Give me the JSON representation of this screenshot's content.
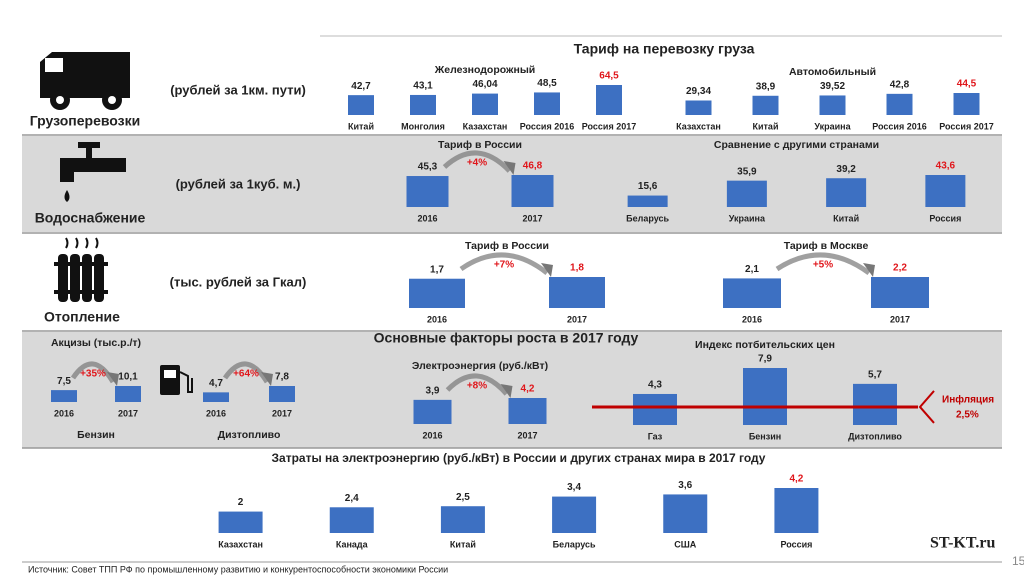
{
  "sections": {
    "freight": {
      "title": "Грузоперевозки",
      "unit": "(рублей за 1км. пути)",
      "header": "Тариф на перевозку груза"
    },
    "water": {
      "title": "Водоснабжение",
      "unit": "(рублей за 1куб. м.)"
    },
    "heating": {
      "title": "Отопление",
      "unit": "(тыс. рублей за Гкал)"
    },
    "factors": {
      "header": "Основные факторы роста в 2017 году"
    }
  },
  "source": "Источник: Совет ТПП РФ по промышленному развитию и конкурентоспособности экономики России",
  "logo": "ST-KT.ru",
  "page_number": "15",
  "chart_data": [
    {
      "type": "bar",
      "title": "Железнодорожный",
      "categories": [
        "Китай",
        "Монголия",
        "Казахстан",
        "Россия 2016",
        "Россия 2017"
      ],
      "values": [
        42.7,
        43.1,
        46.04,
        48.5,
        64.5
      ],
      "value_labels": [
        "42,7",
        "43,1",
        "46,04",
        "48,5",
        "64,5"
      ],
      "value_label_colors": [
        "#222222",
        "#222222",
        "#222222",
        "#222222",
        "#e0161b"
      ],
      "color": "#3d70c2"
    },
    {
      "type": "bar",
      "title": "Автомобильный",
      "categories": [
        "Казахстан",
        "Китай",
        "Украина",
        "Россия 2016",
        "Россия 2017"
      ],
      "values": [
        29.34,
        38.9,
        39.52,
        42.8,
        44.5
      ],
      "value_labels": [
        "29,34",
        "38,9",
        "39,52",
        "42,8",
        "44,5"
      ],
      "value_label_colors": [
        "#222222",
        "#222222",
        "#222222",
        "#222222",
        "#e0161b"
      ],
      "color": "#3d70c2"
    },
    {
      "type": "bar",
      "title": "Тариф в России",
      "categories": [
        "2016",
        "2017"
      ],
      "values": [
        45.3,
        46.8
      ],
      "value_labels": [
        "45,3",
        "46,8"
      ],
      "value_label_colors": [
        "#222222",
        "#e0161b"
      ],
      "annotation": "+4%",
      "color": "#3d70c2"
    },
    {
      "type": "bar",
      "title": "Сравнение с другими странами",
      "categories": [
        "Беларусь",
        "Украина",
        "Китай",
        "Россия"
      ],
      "values": [
        15.6,
        35.9,
        39.2,
        43.6
      ],
      "value_labels": [
        "15,6",
        "35,9",
        "39,2",
        "43,6"
      ],
      "value_label_colors": [
        "#222222",
        "#222222",
        "#222222",
        "#e0161b"
      ],
      "color": "#3d70c2"
    },
    {
      "type": "bar",
      "title": "Тариф в России",
      "categories": [
        "2016",
        "2017"
      ],
      "values": [
        1.7,
        1.8
      ],
      "value_labels": [
        "1,7",
        "1,8"
      ],
      "value_label_colors": [
        "#222222",
        "#e0161b"
      ],
      "annotation": "+7%",
      "color": "#3d70c2"
    },
    {
      "type": "bar",
      "title": "Тариф в Москве",
      "categories": [
        "2016",
        "2017"
      ],
      "values": [
        2.1,
        2.2
      ],
      "value_labels": [
        "2,1",
        "2,2"
      ],
      "value_label_colors": [
        "#222222",
        "#e0161b"
      ],
      "annotation": "+5%",
      "color": "#3d70c2"
    },
    {
      "type": "bar",
      "title": "Акцизы (тыс.р./т)",
      "x_label": "Бензин",
      "categories": [
        "2016",
        "2017"
      ],
      "values": [
        7.5,
        10.1
      ],
      "value_labels": [
        "7,5",
        "10,1"
      ],
      "annotation": "+35%",
      "color": "#3d70c2"
    },
    {
      "type": "bar",
      "x_label": "Дизтопливо",
      "categories": [
        "2016",
        "2017"
      ],
      "values": [
        4.7,
        7.8
      ],
      "value_labels": [
        "4,7",
        "7,8"
      ],
      "annotation": "+64%",
      "color": "#3d70c2"
    },
    {
      "type": "bar",
      "title": "Электроэнергия (руб./кВт)",
      "categories": [
        "2016",
        "2017"
      ],
      "values": [
        3.9,
        4.2
      ],
      "value_labels": [
        "3,9",
        "4,2"
      ],
      "value_label_colors": [
        "#222222",
        "#e0161b"
      ],
      "annotation": "+8%",
      "color": "#3d70c2"
    },
    {
      "type": "bar",
      "title": "Индекс потбительских цен",
      "categories": [
        "Газ",
        "Бензин",
        "Дизтопливо"
      ],
      "values": [
        4.3,
        7.9,
        5.7
      ],
      "value_labels": [
        "4,3",
        "7,9",
        "5,7"
      ],
      "color": "#3d70c2",
      "reference_line": {
        "value": 2.5,
        "name": "Инфляция",
        "label": "2,5%",
        "color": "#c00000"
      }
    },
    {
      "type": "bar",
      "title": "Затраты на электроэнергию (руб./кВт) в России и других странах мира в 2017 году",
      "categories": [
        "Казахстан",
        "Канада",
        "Китай",
        "Беларусь",
        "США",
        "Россия"
      ],
      "values": [
        2,
        2.4,
        2.5,
        3.4,
        3.6,
        4.2
      ],
      "value_labels": [
        "2",
        "2,4",
        "2,5",
        "3,4",
        "3,6",
        "4,2"
      ],
      "value_label_colors": [
        "#222222",
        "#222222",
        "#222222",
        "#222222",
        "#222222",
        "#e0161b"
      ],
      "color": "#3d70c2"
    }
  ]
}
